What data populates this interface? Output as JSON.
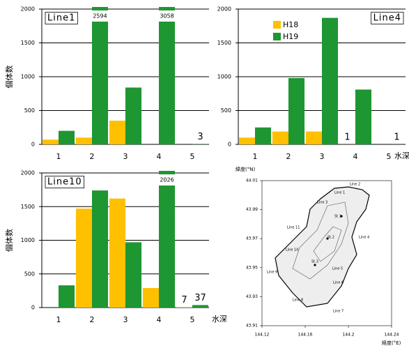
{
  "chart_data": [
    {
      "type": "bar",
      "title": "Line1",
      "categories": [
        "1",
        "2",
        "3",
        "4",
        "5"
      ],
      "series": [
        {
          "name": "H18",
          "color": "#ffc000",
          "values": [
            70,
            100,
            350,
            0,
            0
          ]
        },
        {
          "name": "H19",
          "color": "#1e9632",
          "values": [
            200,
            2594,
            840,
            3058,
            3
          ],
          "value_labels": [
            null,
            "2594",
            null,
            "3058",
            "3"
          ]
        }
      ],
      "ylim": [
        0,
        2000
      ],
      "yticks": [
        0,
        500,
        1000,
        1500,
        2000
      ],
      "grid": true,
      "ylabel": "個体数"
    },
    {
      "type": "bar",
      "title": "Line4",
      "categories": [
        "1",
        "2",
        "3",
        "4",
        "5"
      ],
      "series": [
        {
          "name": "H18",
          "color": "#ffc000",
          "values": [
            100,
            190,
            190,
            1,
            0
          ],
          "value_labels": [
            null,
            null,
            null,
            "1",
            null
          ]
        },
        {
          "name": "H19",
          "color": "#1e9632",
          "values": [
            250,
            980,
            1870,
            810,
            1
          ],
          "value_labels": [
            null,
            null,
            null,
            null,
            "1"
          ]
        }
      ],
      "ylim": [
        0,
        2000
      ],
      "yticks": [
        0,
        500,
        1000,
        1500,
        2000
      ],
      "grid": true,
      "xlabel": "水深",
      "legend": "upper left"
    },
    {
      "type": "bar",
      "title": "Line10",
      "categories": [
        "1",
        "2",
        "3",
        "4",
        "5"
      ],
      "series": [
        {
          "name": "H18",
          "color": "#ffc000",
          "values": [
            0,
            1470,
            1620,
            290,
            7
          ],
          "value_labels": [
            null,
            null,
            null,
            null,
            "7"
          ]
        },
        {
          "name": "H19",
          "color": "#1e9632",
          "values": [
            330,
            1740,
            970,
            2026,
            37
          ],
          "value_labels": [
            null,
            null,
            null,
            "2026",
            "37"
          ]
        }
      ],
      "ylim": [
        0,
        2000
      ],
      "yticks": [
        0,
        500,
        1000,
        1500,
        2000
      ],
      "grid": true,
      "ylabel": "個体数",
      "xlabel": "水深"
    }
  ],
  "map": {
    "ylabel": "緯度(°N)",
    "xlabel": "経度(°E)",
    "ylim": [
      43.91,
      44.01
    ],
    "yticks": [
      44.01,
      43.99,
      43.97,
      43.95,
      43.93,
      43.91
    ],
    "xlim": [
      144.12,
      144.24
    ],
    "xticks": [
      144.12,
      144.16,
      144.2,
      144.24
    ],
    "labels": [
      "Line 1",
      "Line 2",
      "Line 3",
      "Line 4",
      "Line 5",
      "Line 6",
      "Line 7",
      "Line 8",
      "Line 9",
      "Line 10",
      "Line 11",
      "St.1",
      "St.2",
      "St.3"
    ]
  }
}
